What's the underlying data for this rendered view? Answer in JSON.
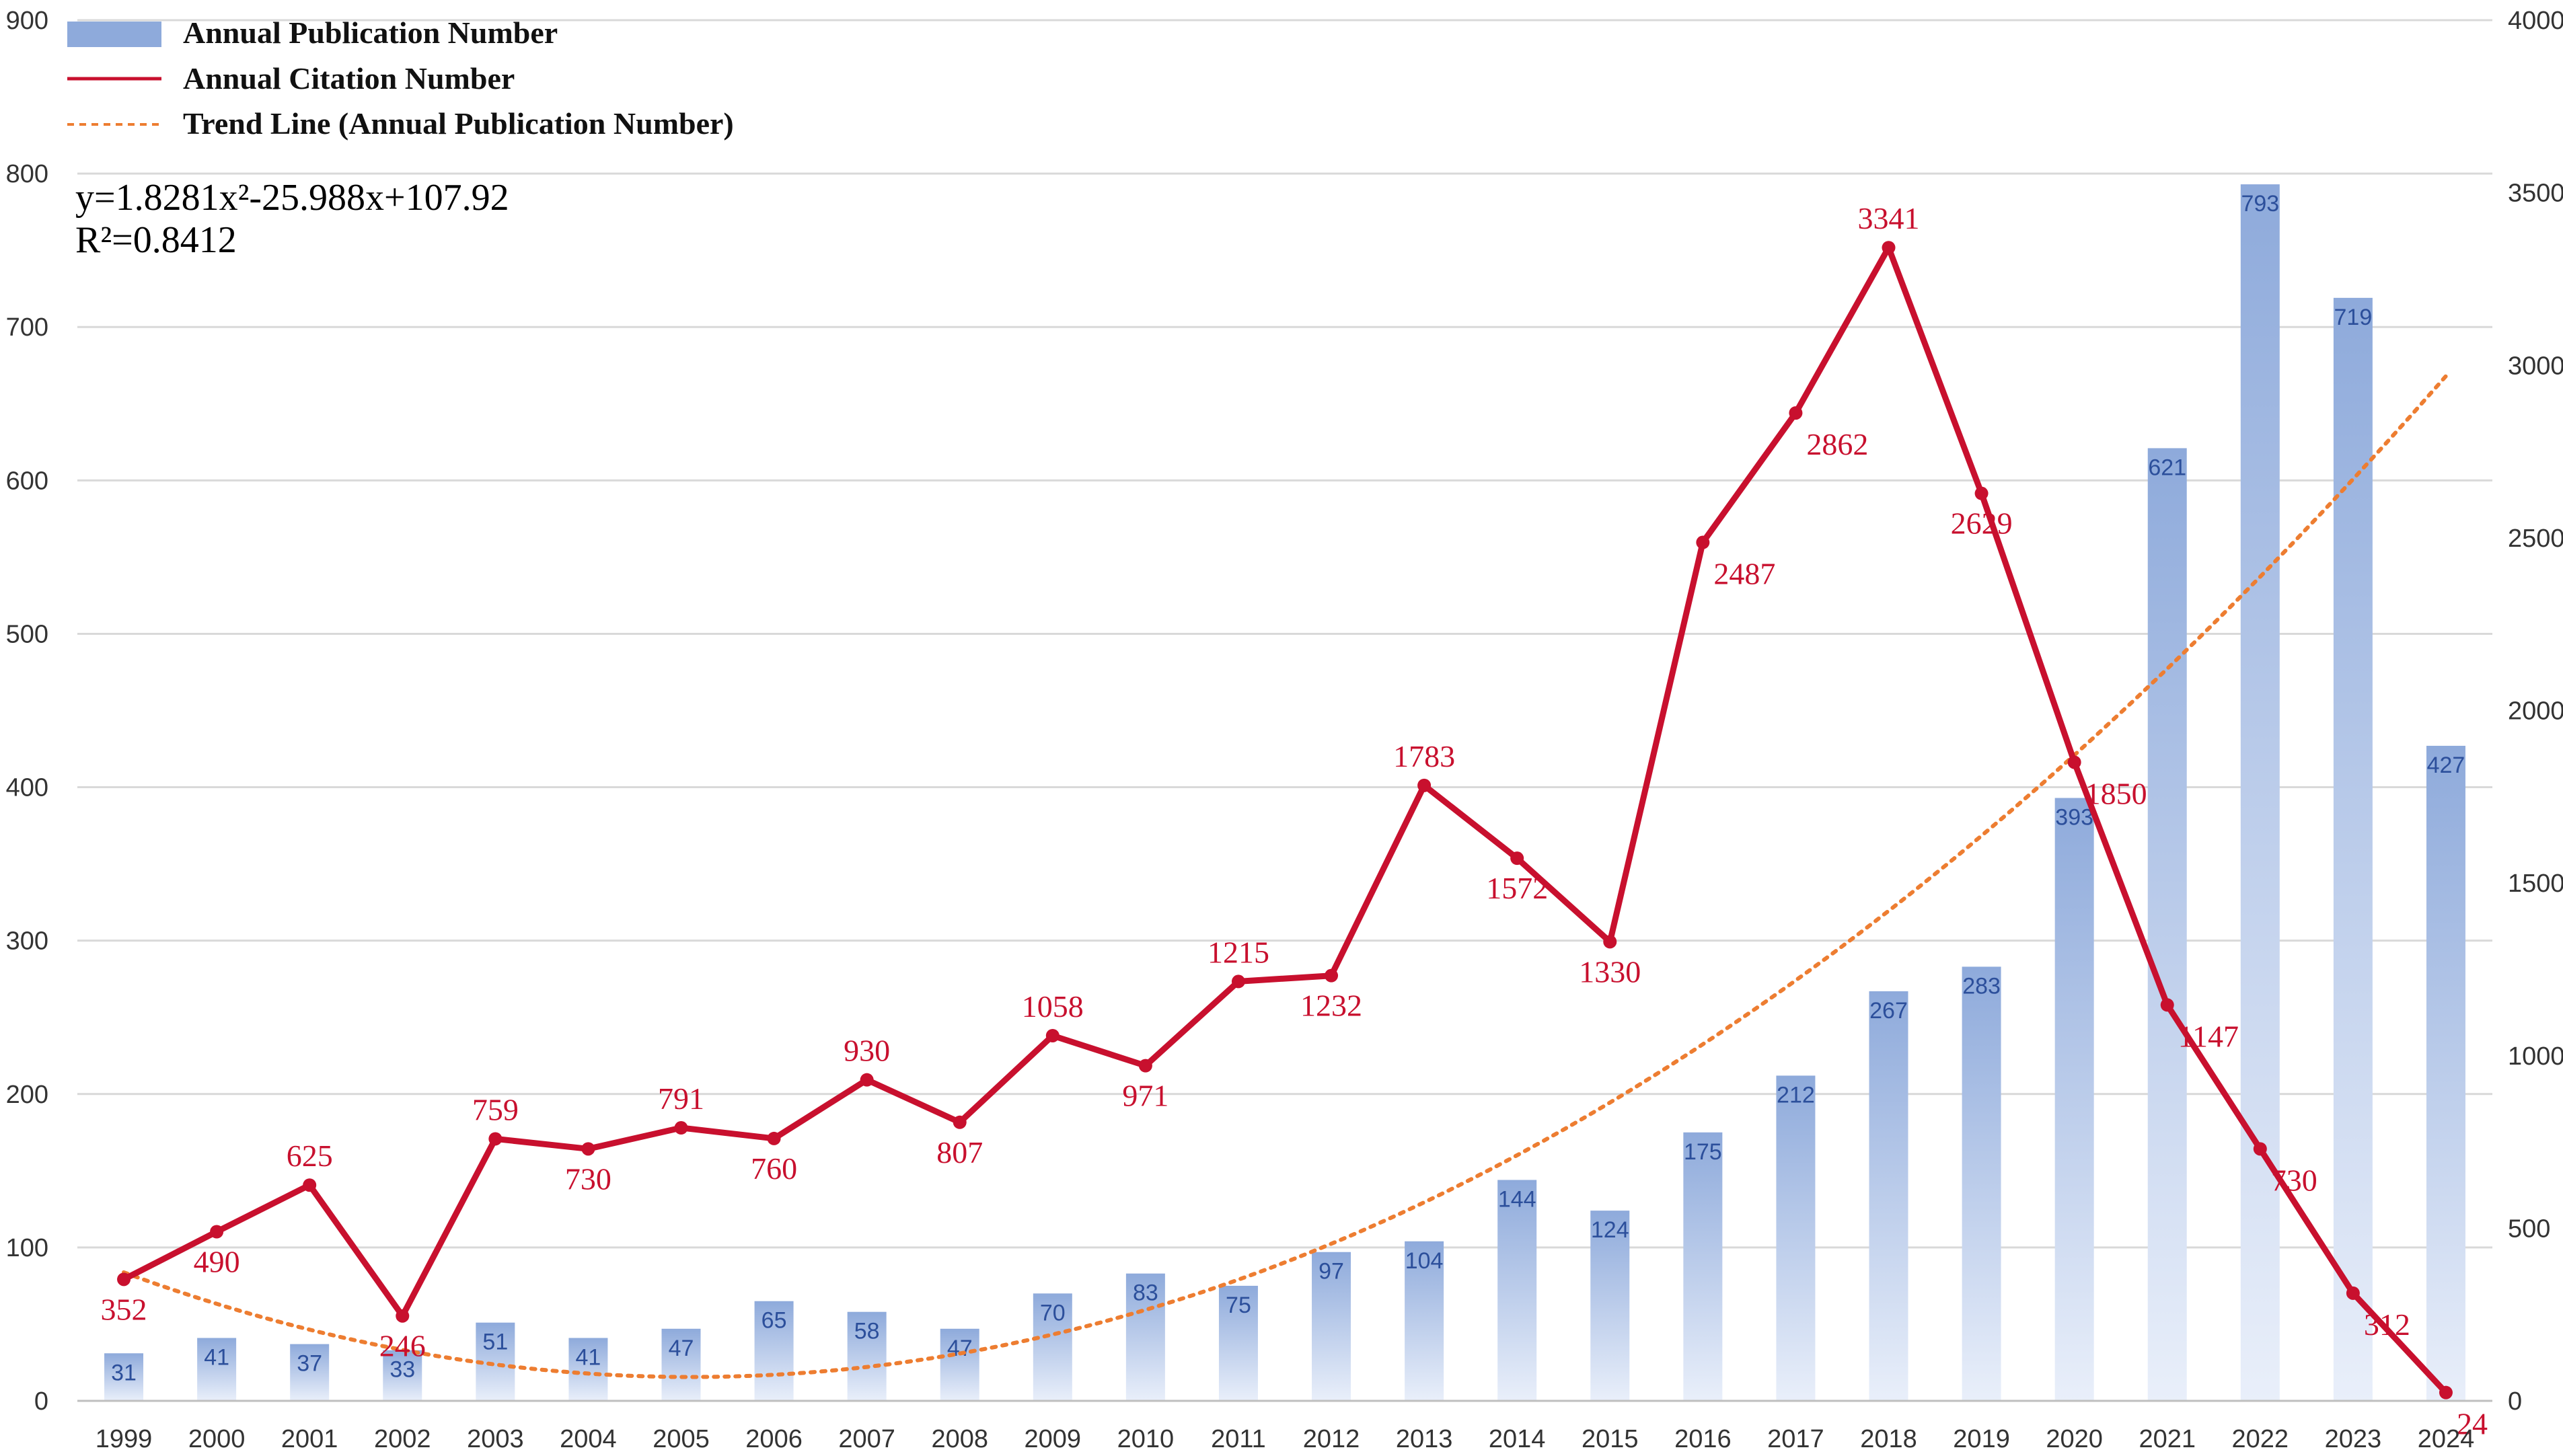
{
  "chart_data": {
    "type": "bar+line",
    "categories": [
      "1999",
      "2000",
      "2001",
      "2002",
      "2003",
      "2004",
      "2005",
      "2006",
      "2007",
      "2008",
      "2009",
      "2010",
      "2011",
      "2012",
      "2013",
      "2014",
      "2015",
      "2016",
      "2017",
      "2018",
      "2019",
      "2020",
      "2021",
      "2022",
      "2023",
      "2024"
    ],
    "series": [
      {
        "name": "Annual Publication Number",
        "type": "bar",
        "axis": "left",
        "color": "#8eaadb",
        "values": [
          31,
          41,
          37,
          33,
          51,
          41,
          47,
          65,
          58,
          47,
          70,
          83,
          75,
          97,
          104,
          144,
          124,
          175,
          212,
          267,
          283,
          393,
          621,
          793,
          719,
          427
        ]
      },
      {
        "name": "Annual Citation Number",
        "type": "line",
        "axis": "right",
        "color": "#c8102e",
        "values": [
          352,
          490,
          625,
          246,
          759,
          730,
          791,
          760,
          930,
          807,
          1058,
          971,
          1215,
          1232,
          1783,
          1572,
          1330,
          2487,
          2862,
          3341,
          2629,
          1850,
          1147,
          730,
          312,
          24
        ]
      },
      {
        "name": "Trend Line (Annual Publication Number)",
        "type": "trend",
        "axis": "left",
        "color": "#ed7d31",
        "coefficients": [
          1.8281,
          -25.988,
          107.92
        ]
      }
    ],
    "left_axis": {
      "ylim": [
        0,
        900
      ],
      "ticks": [
        "0",
        "100",
        "200",
        "300",
        "400",
        "500",
        "600",
        "700",
        "800",
        "900"
      ]
    },
    "right_axis": {
      "ylim": [
        0,
        4000
      ],
      "ticks": [
        "0",
        "500",
        "1000",
        "1500",
        "2000",
        "2500",
        "3000",
        "3500",
        "4000"
      ]
    },
    "legend": {
      "position": "top-left",
      "entries": [
        "Annual Publication Number",
        "Annual Citation Number",
        "Trend Line (Annual Publication Number)"
      ]
    },
    "equation": "y=1.8281x²-25.988x+107.92",
    "r_squared": "R²=0.8412",
    "grid": true
  }
}
